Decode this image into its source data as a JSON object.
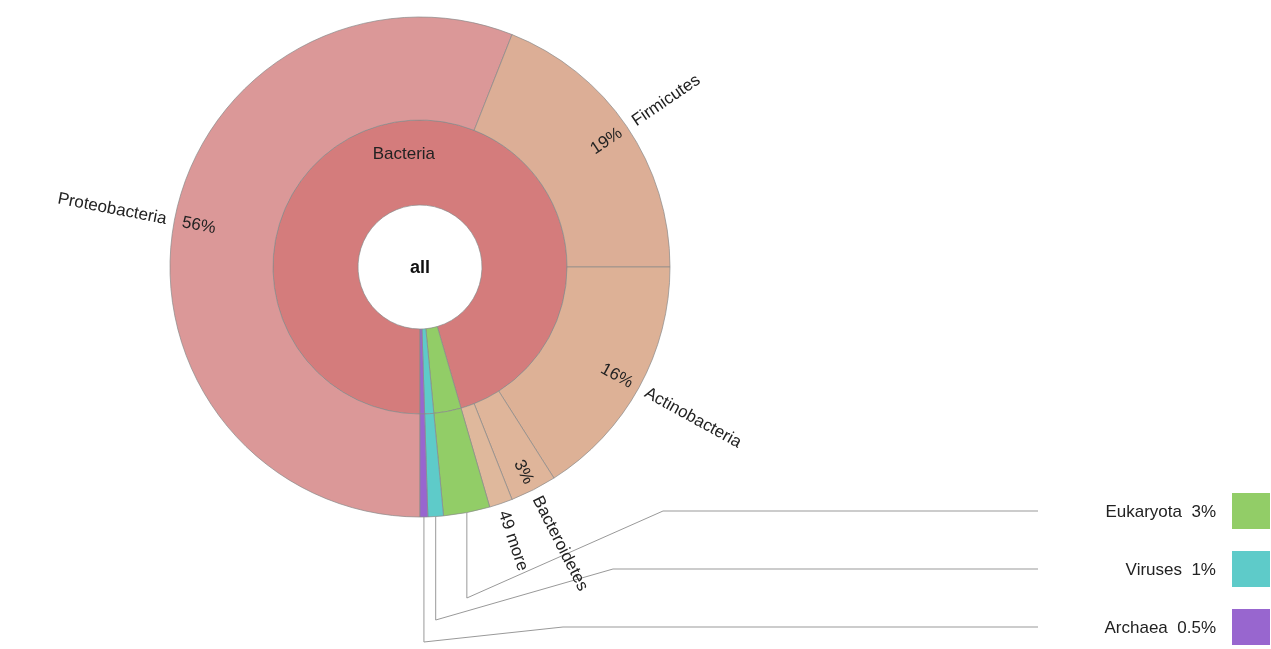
{
  "chart_data": [
    {
      "type": "donut",
      "legend": "bottom right",
      "annotations": [
        "all"
      ],
      "categories": [
        "Bacteria",
        "Eukaryota",
        "Viruses",
        "Archaea"
      ],
      "values": [
        95.5,
        3,
        1,
        0.5
      ],
      "colors": [
        "#d47c7c",
        "#92cd67",
        "#5ecbc9",
        "#9866cf"
      ],
      "value_labels": [
        null,
        "3%",
        "1%",
        "0.5%"
      ]
    },
    {
      "type": "donut",
      "categories": [
        "Proteobacteria",
        "Firmicutes",
        "Actinobacteria",
        "Bacteroidetes",
        "49 more",
        null,
        null,
        null
      ],
      "values": [
        56,
        19,
        16,
        3,
        1.5,
        3,
        1,
        0.5
      ],
      "colors": [
        "#db9898",
        "#dcae96",
        "#ddb196",
        "#dfb59a",
        "#dfb89c",
        "#92cd67",
        "#5ecbc9",
        "#9866cf"
      ],
      "value_labels": [
        "56%",
        "19%",
        "16%",
        "3%",
        null,
        null,
        null,
        null
      ]
    }
  ]
}
